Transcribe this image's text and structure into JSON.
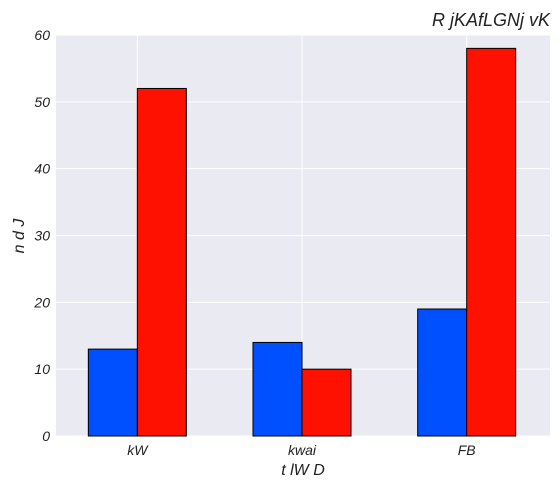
{
  "chart_data": {
    "type": "bar",
    "title": "R jKAfLGNj  vK",
    "xlabel": "t lW D",
    "ylabel": "n d J",
    "categories": [
      "kW",
      "kwai",
      "FB"
    ],
    "ylim": [
      0,
      60
    ],
    "yticks": [
      0,
      10,
      20,
      30,
      40,
      50,
      60
    ],
    "grid": true,
    "series": [
      {
        "values": [
          13,
          14,
          19
        ],
        "color": "#0050ff"
      },
      {
        "values": [
          52,
          10,
          58
        ],
        "color": "#ff1100"
      }
    ],
    "background": "#eaeaf2",
    "gridline_color": "#ffffff"
  }
}
